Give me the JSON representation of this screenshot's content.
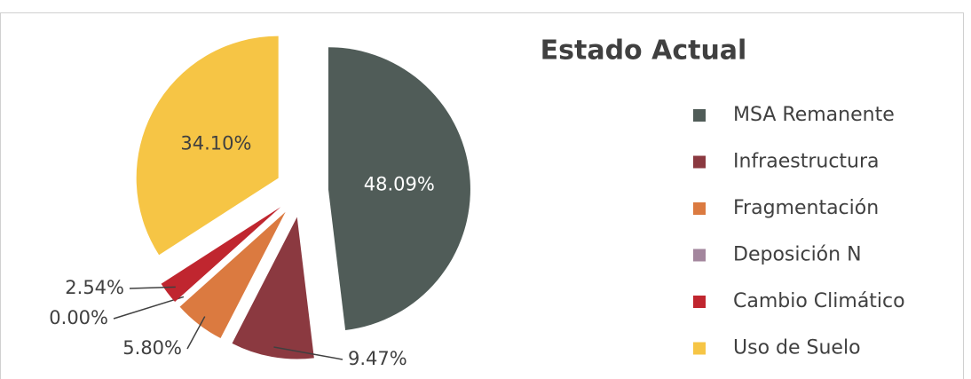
{
  "chart_data": {
    "type": "pie",
    "title": "Estado Actual",
    "categories": [
      "MSA Remanente",
      "Infraestructura",
      "Fragmentación",
      "Deposición N",
      "Cambio Climático",
      "Uso de Suelo"
    ],
    "values": [
      48.09,
      9.47,
      5.8,
      0.0,
      2.54,
      34.1
    ],
    "value_labels": [
      "48.09%",
      "9.47%",
      "5.80%",
      "0.00%",
      "2.54%",
      "34.10%"
    ],
    "colors": [
      "#505c58",
      "#8b3940",
      "#db7a40",
      "#a3869d",
      "#c0262f",
      "#f6c545"
    ]
  }
}
